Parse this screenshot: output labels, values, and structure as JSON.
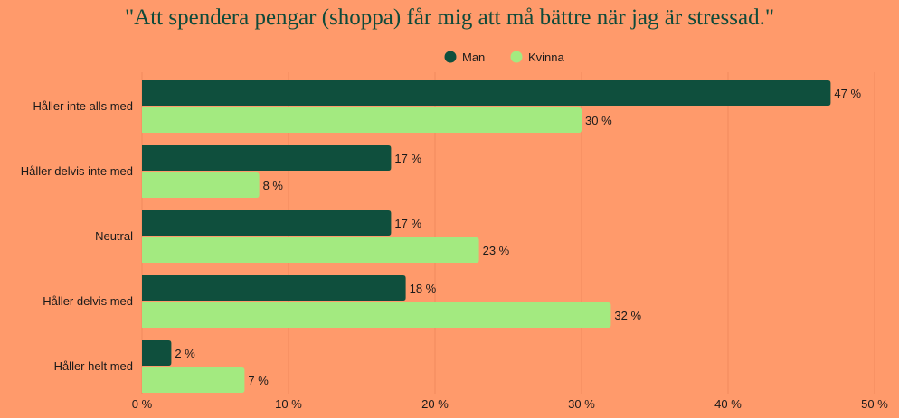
{
  "chart_data": {
    "type": "bar",
    "orientation": "horizontal",
    "title": "\"Att spendera pengar (shoppa) får mig att må bättre när jag är stressad.\"",
    "categories": [
      "Håller inte alls med",
      "Håller delvis inte med",
      "Neutral",
      "Håller delvis med",
      "Håller helt med"
    ],
    "series": [
      {
        "name": "Man",
        "color": "#0F4F3D",
        "values": [
          47,
          17,
          17,
          18,
          2
        ],
        "labels": [
          "47 %",
          "17 %",
          "17 %",
          "18 %",
          "2 %"
        ]
      },
      {
        "name": "Kvinna",
        "color": "#A3EA80",
        "values": [
          30,
          8,
          23,
          32,
          7
        ],
        "labels": [
          "30 %",
          "8 %",
          "23 %",
          "32 %",
          "7 %"
        ]
      }
    ],
    "xlim": [
      0,
      50
    ],
    "xticks": [
      0,
      10,
      20,
      30,
      40,
      50
    ],
    "xtick_labels": [
      "0 %",
      "10 %",
      "20 %",
      "30 %",
      "40 %",
      "50 %"
    ],
    "legend_position": "top-center",
    "grid": "vertical",
    "colors": {
      "background": "#FF9A6B",
      "grid": "#F08A5E",
      "text": "#1A1A1A",
      "title": "#0F4A3A"
    }
  }
}
